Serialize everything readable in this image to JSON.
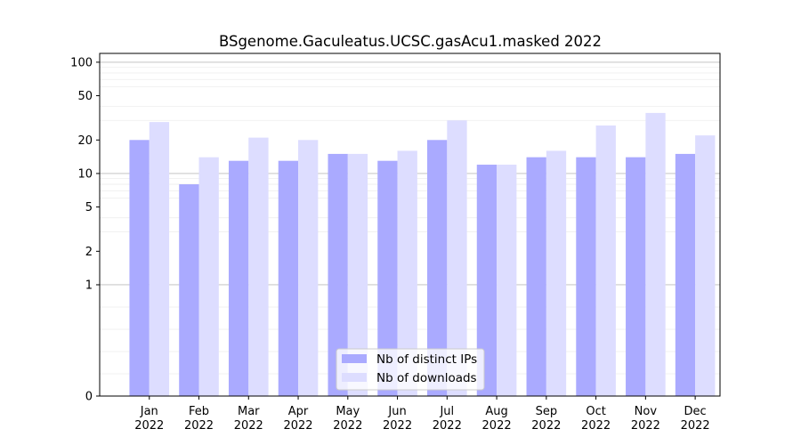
{
  "chart_data": {
    "type": "bar",
    "title": "BSgenome.Gaculeatus.UCSC.gasAcu1.masked 2022",
    "xlabel": "",
    "ylabel": "",
    "y_scale": "symlog",
    "ylim": [
      0,
      120
    ],
    "y_ticks": [
      0,
      1,
      2,
      5,
      10,
      20,
      50,
      100
    ],
    "y_tick_labels": [
      "0",
      "1",
      "2",
      "5",
      "10",
      "20",
      "50",
      "100"
    ],
    "categories": [
      "Jan\n2022",
      "Feb\n2022",
      "Mar\n2022",
      "Apr\n2022",
      "May\n2022",
      "Jun\n2022",
      "Jul\n2022",
      "Aug\n2022",
      "Sep\n2022",
      "Oct\n2022",
      "Nov\n2022",
      "Dec\n2022"
    ],
    "series": [
      {
        "name": "Nb of distinct IPs",
        "color": "#aaaaff",
        "values": [
          20,
          8,
          13,
          13,
          15,
          13,
          20,
          12,
          14,
          14,
          14,
          15
        ]
      },
      {
        "name": "Nb of downloads",
        "color": "#ddddff",
        "values": [
          29,
          14,
          21,
          20,
          15,
          16,
          30,
          12,
          16,
          27,
          35,
          22
        ]
      }
    ],
    "legend": {
      "position": "lower-center"
    },
    "grid": {
      "major_color": "#bbbbbb",
      "minor_color": "#eeeeee"
    }
  }
}
